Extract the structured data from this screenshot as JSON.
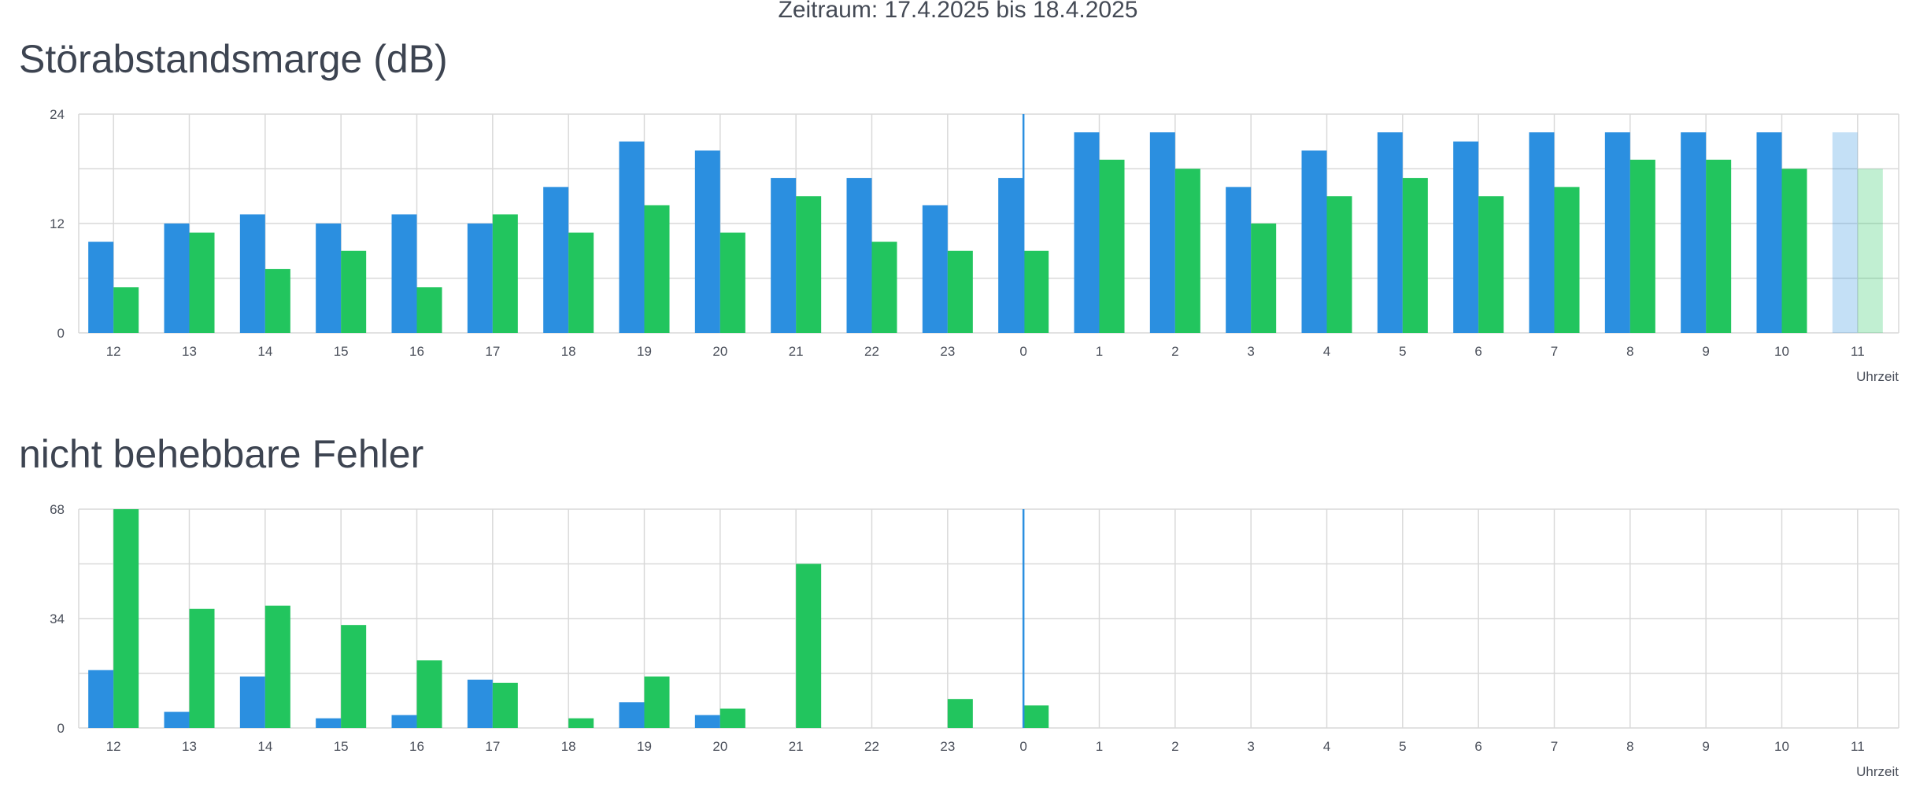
{
  "header": {
    "period": "Zeitraum: 17.4.2025 bis 18.4.2025"
  },
  "colors": {
    "blue": "#2b8fe0",
    "green": "#22c55e",
    "grid": "#d9d9d9",
    "marker": "#2b8fe0"
  },
  "chart_data": [
    {
      "type": "bar",
      "title": "Störabstandsmarge (dB)",
      "xlabel": "Uhrzeit",
      "ylabel": "",
      "categories": [
        "12",
        "13",
        "14",
        "15",
        "16",
        "17",
        "18",
        "19",
        "20",
        "21",
        "22",
        "23",
        "0",
        "1",
        "2",
        "3",
        "4",
        "5",
        "6",
        "7",
        "8",
        "9",
        "10",
        "11"
      ],
      "series": [
        {
          "values": [
            10,
            12,
            13,
            12,
            13,
            12,
            16,
            21,
            20,
            17,
            17,
            14,
            17,
            22,
            22,
            16,
            20,
            22,
            21,
            22,
            22,
            22,
            22,
            22
          ]
        },
        {
          "values": [
            5,
            11,
            7,
            9,
            5,
            13,
            11,
            14,
            11,
            15,
            10,
            9,
            9,
            19,
            18,
            12,
            15,
            17,
            15,
            16,
            19,
            19,
            18,
            18
          ]
        }
      ],
      "ylim": [
        0,
        24
      ],
      "yticks": [
        0,
        12,
        24
      ],
      "grid": true,
      "day_marker_category": "0",
      "faded_category": "11"
    },
    {
      "type": "bar",
      "title": "nicht behebbare Fehler",
      "xlabel": "Uhrzeit",
      "ylabel": "",
      "categories": [
        "12",
        "13",
        "14",
        "15",
        "16",
        "17",
        "18",
        "19",
        "20",
        "21",
        "22",
        "23",
        "0",
        "1",
        "2",
        "3",
        "4",
        "5",
        "6",
        "7",
        "8",
        "9",
        "10",
        "11"
      ],
      "series": [
        {
          "values": [
            18,
            5,
            16,
            3,
            4,
            15,
            0,
            8,
            4,
            0,
            0,
            0,
            0,
            0,
            0,
            0,
            0,
            0,
            0,
            0,
            0,
            0,
            0,
            0
          ]
        },
        {
          "values": [
            68,
            37,
            38,
            32,
            21,
            14,
            3,
            16,
            6,
            51,
            0,
            9,
            7,
            0,
            0,
            0,
            0,
            0,
            0,
            0,
            0,
            0,
            0,
            0
          ]
        }
      ],
      "ylim": [
        0,
        68
      ],
      "yticks": [
        0,
        34,
        68
      ],
      "grid": true,
      "day_marker_category": "0"
    }
  ]
}
